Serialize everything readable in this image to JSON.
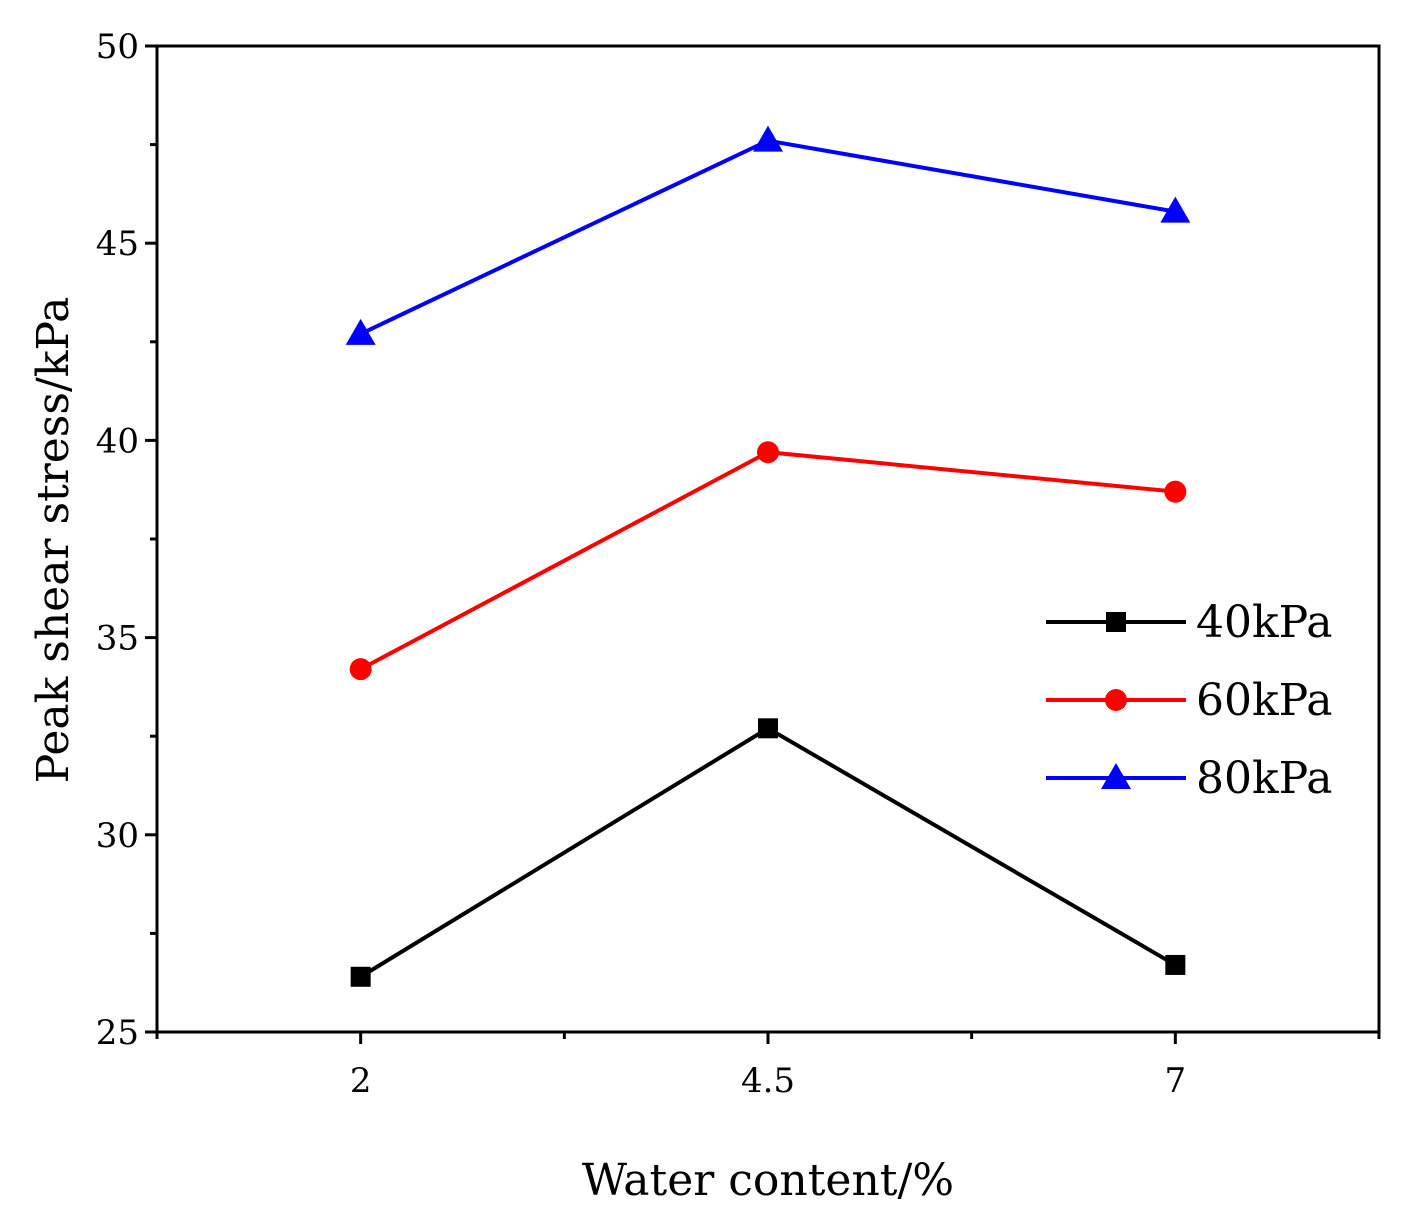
{
  "chart_data": {
    "type": "line",
    "title": "",
    "xlabel": "Water content/%",
    "ylabel": "Peak shear stress/kPa",
    "x": [
      2,
      4.5,
      7
    ],
    "x_tick_labels": [
      "2",
      "4.5",
      "7"
    ],
    "xlim": [
      0.75,
      8.25
    ],
    "ylim": [
      25,
      50
    ],
    "y_ticks": [
      25,
      30,
      35,
      40,
      45,
      50
    ],
    "y_tick_labels": [
      "25",
      "30",
      "35",
      "40",
      "45",
      "50"
    ],
    "grid": false,
    "legend_position": "right",
    "series": [
      {
        "name": "40kPa",
        "color": "#000000",
        "marker": "square",
        "values": [
          26.4,
          32.7,
          26.7
        ]
      },
      {
        "name": "60kPa",
        "color": "#ff0000",
        "marker": "circle",
        "values": [
          34.2,
          39.7,
          38.7
        ]
      },
      {
        "name": "80kPa",
        "color": "#0000ff",
        "marker": "triangle",
        "values": [
          42.7,
          47.6,
          45.8
        ]
      }
    ]
  }
}
